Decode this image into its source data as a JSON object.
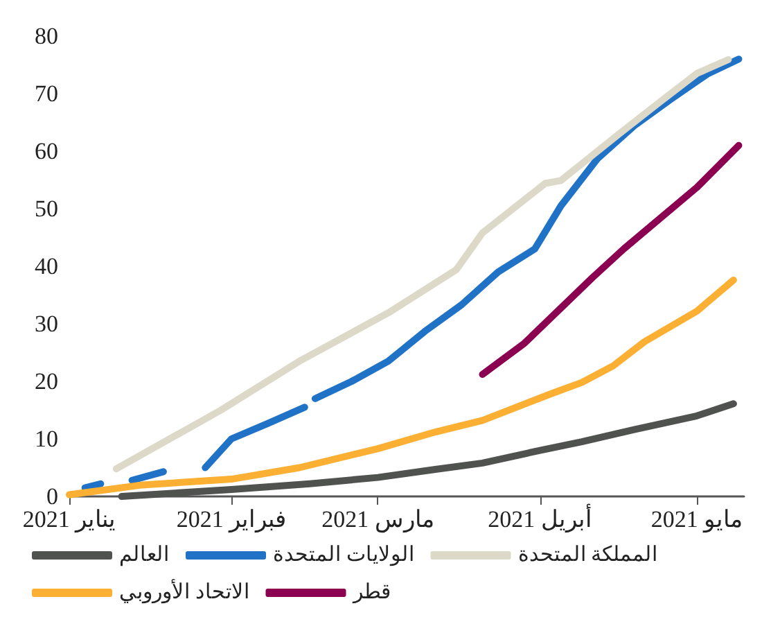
{
  "chart_data": {
    "type": "line",
    "xlim": [
      "2021-01-01",
      "2021-05-10"
    ],
    "ylim": [
      0,
      80
    ],
    "yticks": [
      0,
      10,
      20,
      30,
      40,
      50,
      60,
      70,
      80
    ],
    "xticks": [
      {
        "value": "2021-01-01",
        "label": "يناير 2021"
      },
      {
        "value": "2021-02-01",
        "label": "فبراير 2021"
      },
      {
        "value": "2021-03-01",
        "label": "مارس 2021"
      },
      {
        "value": "2021-04-01",
        "label": "أبريل 2021"
      },
      {
        "value": "2021-05-01",
        "label": "مايو 2021"
      }
    ],
    "grid": false,
    "legend": "bottom",
    "line_style": "solid",
    "marker": "none",
    "series": [
      {
        "name": "العالم",
        "color": "#505250",
        "x": [
          "2021-01-11",
          "2021-02-01",
          "2021-02-16",
          "2021-03-01",
          "2021-03-12",
          "2021-03-21",
          "2021-04-01",
          "2021-04-09",
          "2021-04-19",
          "2021-05-01",
          "2021-05-08"
        ],
        "values": [
          0,
          1.2,
          2.2,
          3.3,
          4.7,
          5.8,
          8,
          9.5,
          11.6,
          14,
          16.1
        ]
      },
      {
        "name": "الولايات المتحدة",
        "color": "#1f72c6",
        "x": [
          "2021-01-04",
          "2021-01-07",
          "2021-01-10",
          "2021-01-13",
          "2021-01-19",
          "2021-01-23",
          "2021-01-27",
          "2021-02-01",
          "2021-02-08",
          "2021-02-15",
          "2021-02-16",
          "2021-02-17",
          "2021-02-24",
          "2021-03-03",
          "2021-03-10",
          "2021-03-17",
          "2021-03-24",
          "2021-03-31",
          "2021-04-05",
          "2021-04-12",
          "2021-04-19",
          "2021-04-26",
          "2021-05-03",
          "2021-05-09"
        ],
        "values": [
          1.5,
          2.2,
          null,
          2.8,
          4.3,
          null,
          5,
          10,
          12.7,
          15.5,
          null,
          17,
          20,
          23.5,
          28.7,
          33.3,
          39,
          43,
          50.5,
          58.7,
          64.4,
          69,
          73.4,
          76
        ]
      },
      {
        "name": "المملكة المتحدة",
        "color": "#ddd9c8",
        "x": [
          "2021-01-10",
          "2021-01-30",
          "2021-02-14",
          "2021-03-03",
          "2021-03-16",
          "2021-03-21",
          "2021-04-02",
          "2021-04-05",
          "2021-04-16",
          "2021-04-24",
          "2021-05-01",
          "2021-05-07"
        ],
        "values": [
          4.8,
          15,
          23.5,
          31.9,
          39.4,
          45.8,
          54.4,
          54.9,
          62.9,
          68.6,
          73.5,
          75.9
        ]
      },
      {
        "name": "الاتحاد الأوروبي",
        "color": "#fbb034",
        "x": [
          "2021-01-01",
          "2021-01-15",
          "2021-02-01",
          "2021-02-14",
          "2021-03-01",
          "2021-03-12",
          "2021-03-21",
          "2021-04-03",
          "2021-04-09",
          "2021-04-15",
          "2021-04-21",
          "2021-05-01",
          "2021-05-08"
        ],
        "values": [
          0.3,
          2,
          3,
          5,
          8.3,
          11.2,
          13.2,
          17.8,
          19.8,
          22.7,
          26.9,
          32.2,
          37.6
        ]
      },
      {
        "name": "قطر",
        "color": "#8b0051",
        "x": [
          "2021-03-21",
          "2021-03-29",
          "2021-04-11",
          "2021-04-17",
          "2021-05-01",
          "2021-05-09"
        ],
        "values": [
          21.2,
          26.6,
          38,
          43,
          53.7,
          61
        ]
      }
    ]
  }
}
